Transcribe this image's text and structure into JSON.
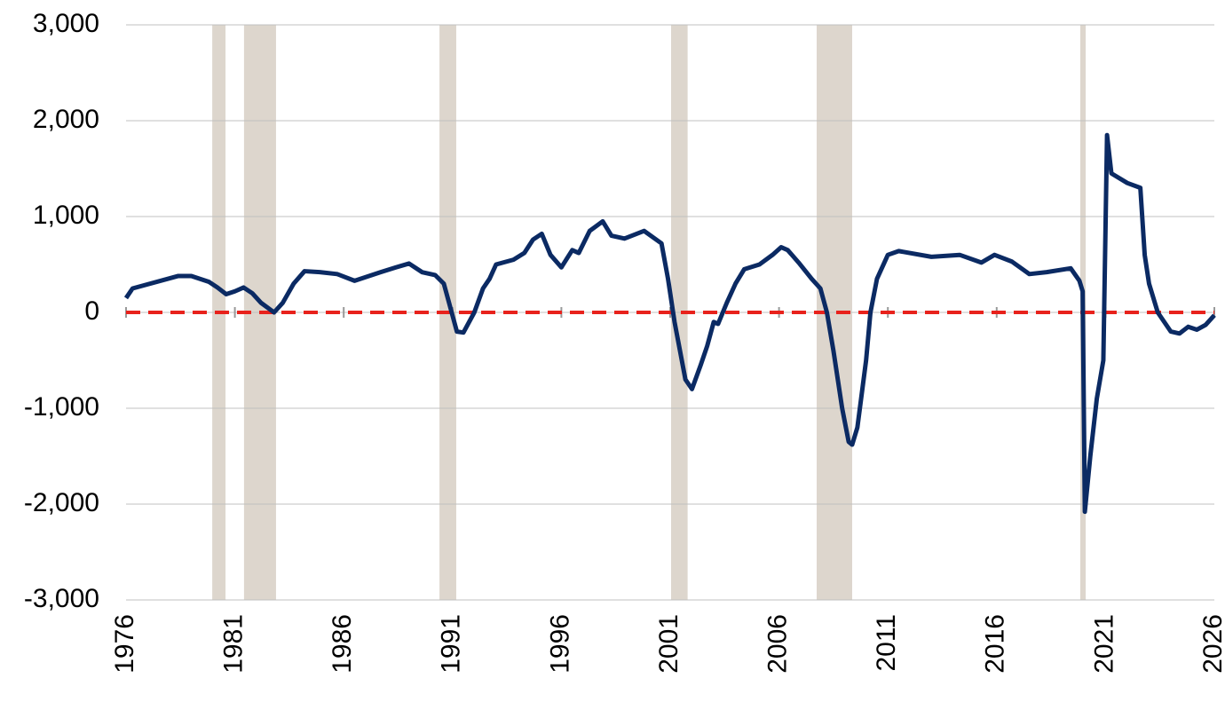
{
  "chart_data": {
    "type": "line",
    "x": [
      1976.0,
      1976.3,
      1978.4,
      1979.0,
      1979.8,
      1980.2,
      1980.6,
      1981.0,
      1981.4,
      1981.8,
      1982.2,
      1982.8,
      1983.2,
      1983.7,
      1984.2,
      1984.9,
      1985.7,
      1986.5,
      1987.7,
      1988.4,
      1989.0,
      1989.6,
      1990.2,
      1990.6,
      1990.9,
      1991.2,
      1991.5,
      1992.0,
      1992.4,
      1992.7,
      1993.0,
      1993.8,
      1994.3,
      1994.7,
      1995.1,
      1995.5,
      1996.0,
      1996.5,
      1996.8,
      1997.3,
      1997.9,
      1998.3,
      1998.9,
      1999.8,
      2000.6,
      2000.9,
      2001.2,
      2001.7,
      2002.0,
      2002.4,
      2002.7,
      2003.0,
      2003.2,
      2003.6,
      2004.0,
      2004.4,
      2005.1,
      2005.7,
      2006.1,
      2006.4,
      2006.9,
      2007.5,
      2007.9,
      2008.2,
      2008.5,
      2008.9,
      2009.2,
      2009.36,
      2009.6,
      2010.0,
      2010.2,
      2010.5,
      2011.0,
      2011.5,
      2013.0,
      2014.3,
      2015.3,
      2015.9,
      2016.7,
      2017.5,
      2018.3,
      2019.4,
      2019.8,
      2019.95,
      2020.05,
      2020.3,
      2020.6,
      2020.9,
      2021.07,
      2021.27,
      2022.0,
      2022.6,
      2022.8,
      2023.0,
      2023.4,
      2024.0,
      2024.4,
      2024.8,
      2025.2,
      2025.6,
      2026.0
    ],
    "series": [
      {
        "color": "#0b2a63",
        "values": [
          150,
          250,
          380,
          380,
          320,
          260,
          190,
          220,
          260,
          200,
          100,
          0,
          100,
          300,
          430,
          420,
          400,
          330,
          420,
          470,
          510,
          420,
          390,
          300,
          50,
          -200,
          -210,
          0,
          250,
          350,
          500,
          550,
          620,
          760,
          820,
          600,
          470,
          650,
          620,
          850,
          950,
          800,
          770,
          850,
          720,
          350,
          -100,
          -700,
          -800,
          -550,
          -350,
          -100,
          -120,
          100,
          300,
          450,
          500,
          600,
          680,
          650,
          520,
          350,
          250,
          0,
          -400,
          -1000,
          -1350,
          -1380,
          -1200,
          -500,
          0,
          350,
          600,
          640,
          580,
          600,
          520,
          600,
          530,
          400,
          420,
          460,
          330,
          220,
          -2080,
          -1500,
          -900,
          -500,
          1850,
          1450,
          1350,
          1300,
          600,
          300,
          0,
          -200,
          -220,
          -150,
          -180,
          -130,
          -30
        ]
      }
    ],
    "shaded_periods": [
      [
        1979.96,
        1980.57
      ],
      [
        1981.42,
        1982.89
      ],
      [
        1990.4,
        1991.17
      ],
      [
        2001.04,
        2001.8
      ],
      [
        2007.73,
        2009.36
      ],
      [
        2019.84,
        2020.09
      ]
    ],
    "shade_color": "#ddd6cd",
    "reference_line": {
      "value": 0,
      "color": "#e8221c"
    },
    "xlim": [
      1976,
      2026
    ],
    "xticks": [
      1976,
      1981,
      1986,
      1991,
      1996,
      2001,
      2006,
      2011,
      2016,
      2021,
      2026
    ],
    "ylim": [
      -3000,
      3000
    ],
    "yticks": [
      {
        "value": -3000,
        "label": "-3,000"
      },
      {
        "value": -2000,
        "label": "-2,000"
      },
      {
        "value": -1000,
        "label": "-1,000"
      },
      0,
      {
        "value": 1000,
        "label": "1,000"
      },
      {
        "value": 2000,
        "label": "2,000"
      },
      {
        "value": 3000,
        "label": "3,000"
      }
    ],
    "grid": true
  }
}
